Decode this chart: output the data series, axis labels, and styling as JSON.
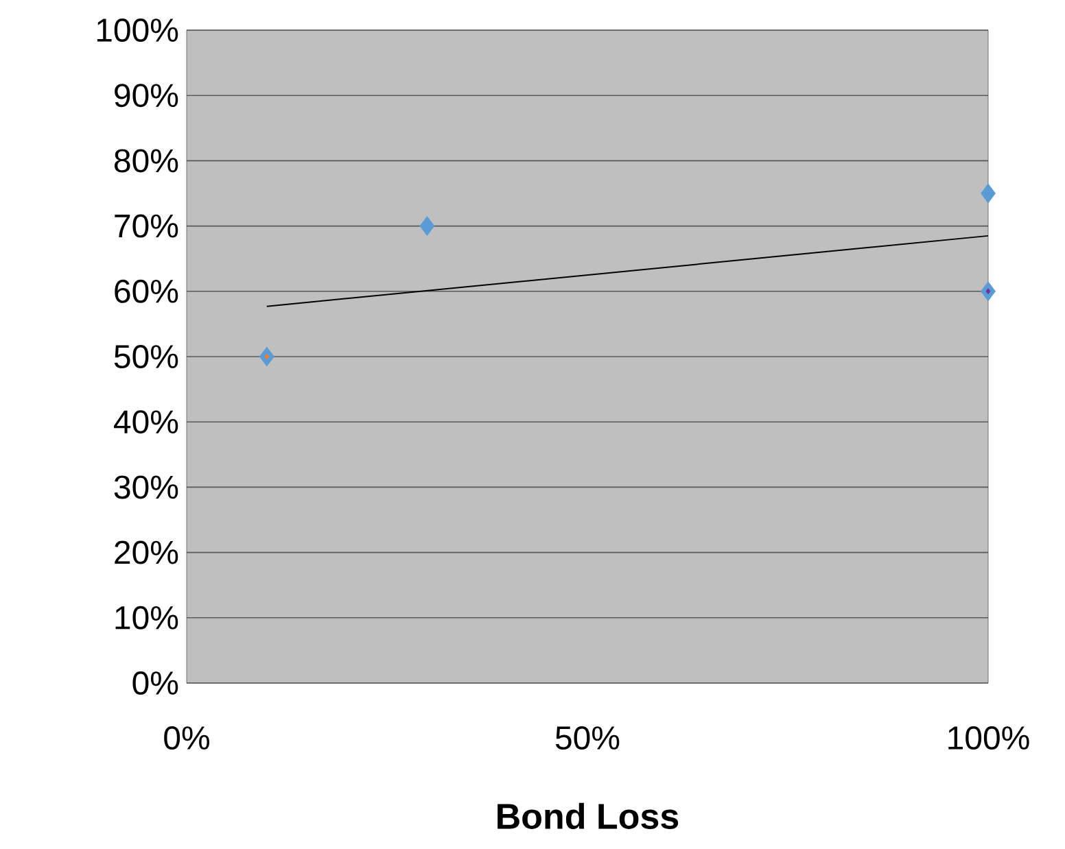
{
  "chart_data": {
    "type": "scatter",
    "xlabel": "Bond Loss",
    "series": [
      {
        "color": "#5b9bd5",
        "x": [
          10,
          30,
          100,
          100
        ],
        "values": [
          50,
          70,
          75,
          60
        ]
      },
      {
        "color": "#ed7d31",
        "x": [
          10
        ],
        "values": [
          50
        ]
      },
      {
        "color": "#7030a0",
        "x": [
          100
        ],
        "values": [
          60
        ]
      },
      {
        "type": "line",
        "marker": "none",
        "color": "#000000",
        "x": [
          10,
          100
        ],
        "values": [
          57.7,
          68.5
        ]
      }
    ],
    "xlim": [
      0,
      100
    ],
    "ylim": [
      0,
      100
    ],
    "xticks": [
      {
        "value": 0,
        "label": "0%"
      },
      {
        "value": 50,
        "label": "50%"
      },
      {
        "value": 100,
        "label": "100%"
      }
    ],
    "yticks": [
      {
        "value": 0,
        "label": "0%"
      },
      {
        "value": 10,
        "label": "10%"
      },
      {
        "value": 20,
        "label": "20%"
      },
      {
        "value": 30,
        "label": "30%"
      },
      {
        "value": 40,
        "label": "40%"
      },
      {
        "value": 50,
        "label": "50%"
      },
      {
        "value": 60,
        "label": "60%"
      },
      {
        "value": 70,
        "label": "70%"
      },
      {
        "value": 80,
        "label": "80%"
      },
      {
        "value": 90,
        "label": "90%"
      },
      {
        "value": 100,
        "label": "100%"
      }
    ],
    "grid": "y",
    "marker": "diamond"
  }
}
